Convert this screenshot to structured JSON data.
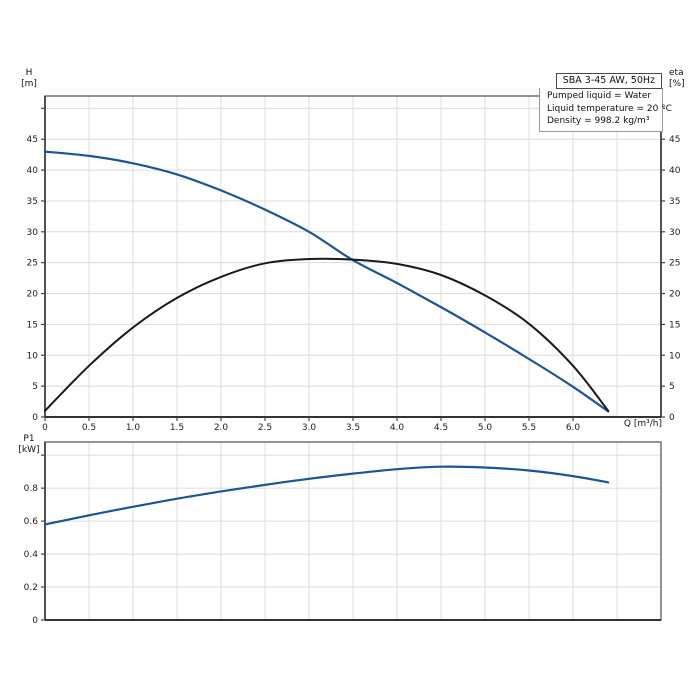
{
  "page": {
    "background": "#ffffff"
  },
  "title_box": {
    "label": "SBA 3-45 AW, 50Hz"
  },
  "info_box": {
    "lines": [
      "Pumped liquid = Water",
      "Liquid temperature = 20 °C",
      "Density = 998.2 kg/m³"
    ]
  },
  "colors": {
    "curve_blue": "#1d5494",
    "curve_black": "#1a1a1a",
    "grid": "#dcdcdc",
    "spine": "#5a5a5a",
    "axis_line": "#333333",
    "tick": "#444444",
    "text": "#111111",
    "title_border": "#4a4a4a",
    "info_border": "#9a9a9a"
  },
  "chart_data": [
    {
      "type": "line",
      "title": "",
      "xlabel": "Q [m³/h]",
      "ylabel_left": [
        "H",
        "[m]"
      ],
      "ylabel_right": [
        "eta",
        "[%]"
      ],
      "xlim": [
        0,
        7
      ],
      "ylim": [
        0,
        52
      ],
      "grid": true,
      "legend": "none",
      "x_grid_step": 0.5,
      "x_ticks": [
        {
          "v": 0,
          "t": "0"
        },
        {
          "v": 0.5,
          "t": "0.5"
        },
        {
          "v": 1,
          "t": "1.0"
        },
        {
          "v": 1.5,
          "t": "1.5"
        },
        {
          "v": 2,
          "t": "2.0"
        },
        {
          "v": 2.5,
          "t": "2.5"
        },
        {
          "v": 3,
          "t": "3.0"
        },
        {
          "v": 3.5,
          "t": "3.5"
        },
        {
          "v": 4,
          "t": "4.0"
        },
        {
          "v": 4.5,
          "t": "4.5"
        },
        {
          "v": 5,
          "t": "5.0"
        },
        {
          "v": 5.5,
          "t": "5.5"
        },
        {
          "v": 6,
          "t": "6.0"
        }
      ],
      "y_ticks": [
        {
          "v": 0,
          "t": "0"
        },
        {
          "v": 5,
          "t": "5"
        },
        {
          "v": 10,
          "t": "10"
        },
        {
          "v": 15,
          "t": "15"
        },
        {
          "v": 20,
          "t": "20"
        },
        {
          "v": 25,
          "t": "25"
        },
        {
          "v": 30,
          "t": "30"
        },
        {
          "v": 35,
          "t": "35"
        },
        {
          "v": 40,
          "t": "40"
        },
        {
          "v": 45,
          "t": "45"
        },
        {
          "v": 50,
          "t": ""
        }
      ],
      "right_axis": true,
      "series": [
        {
          "name": "H",
          "unit": "m",
          "color_key": "curve_blue",
          "points": [
            [
              0,
              43.0
            ],
            [
              0.5,
              42.3
            ],
            [
              1.0,
              41.1
            ],
            [
              1.5,
              39.3
            ],
            [
              2.0,
              36.7
            ],
            [
              2.5,
              33.6
            ],
            [
              3.0,
              30.0
            ],
            [
              3.5,
              25.4
            ],
            [
              4.0,
              21.7
            ],
            [
              4.5,
              17.8
            ],
            [
              5.0,
              13.7
            ],
            [
              5.5,
              9.4
            ],
            [
              6.0,
              4.9
            ],
            [
              6.4,
              0.9
            ]
          ]
        },
        {
          "name": "eta",
          "unit": "%",
          "color_key": "curve_black",
          "points": [
            [
              0,
              1.0
            ],
            [
              0.5,
              8.3
            ],
            [
              1.0,
              14.5
            ],
            [
              1.5,
              19.3
            ],
            [
              2.0,
              22.7
            ],
            [
              2.5,
              24.9
            ],
            [
              3.0,
              25.6
            ],
            [
              3.5,
              25.5
            ],
            [
              4.0,
              24.8
            ],
            [
              4.5,
              23.0
            ],
            [
              5.0,
              19.7
            ],
            [
              5.5,
              15.1
            ],
            [
              6.0,
              8.3
            ],
            [
              6.4,
              1.0
            ]
          ]
        }
      ]
    },
    {
      "type": "line",
      "title": "",
      "xlabel": "",
      "ylabel_left": [
        "P1",
        "[kW]"
      ],
      "xlim": [
        0,
        7
      ],
      "ylim": [
        0,
        1.08
      ],
      "grid": true,
      "legend": "none",
      "x_grid_step": 0.5,
      "x_ticks": [],
      "y_ticks": [
        {
          "v": 0,
          "t": "0"
        },
        {
          "v": 0.2,
          "t": "0.2"
        },
        {
          "v": 0.4,
          "t": "0.4"
        },
        {
          "v": 0.6,
          "t": "0.6"
        },
        {
          "v": 0.8,
          "t": "0.8"
        },
        {
          "v": 1.0,
          "t": ""
        }
      ],
      "right_axis": false,
      "series": [
        {
          "name": "P1",
          "unit": "kW",
          "color_key": "curve_blue",
          "points": [
            [
              0,
              0.58
            ],
            [
              0.5,
              0.635
            ],
            [
              1.0,
              0.687
            ],
            [
              1.5,
              0.736
            ],
            [
              2.0,
              0.78
            ],
            [
              2.5,
              0.82
            ],
            [
              3.0,
              0.857
            ],
            [
              3.5,
              0.888
            ],
            [
              4.0,
              0.915
            ],
            [
              4.5,
              0.93
            ],
            [
              5.0,
              0.925
            ],
            [
              5.5,
              0.907
            ],
            [
              6.0,
              0.873
            ],
            [
              6.4,
              0.835
            ]
          ]
        }
      ]
    }
  ]
}
